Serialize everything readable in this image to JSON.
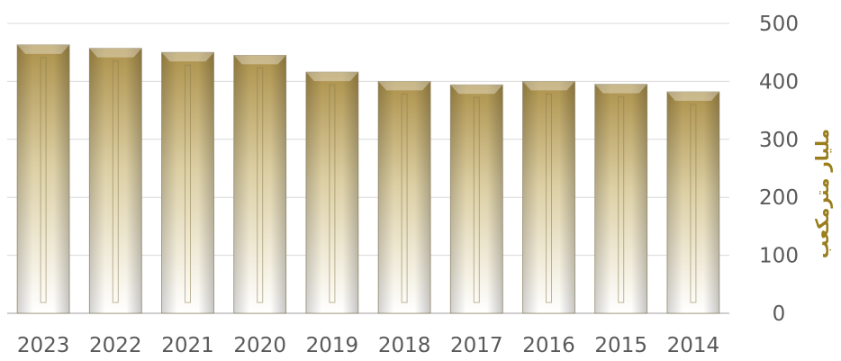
{
  "chart_data": {
    "type": "bar",
    "categories": [
      "2023",
      "2022",
      "2021",
      "2020",
      "2019",
      "2018",
      "2017",
      "2016",
      "2015",
      "2014"
    ],
    "values": [
      463,
      457,
      450,
      445,
      416,
      400,
      394,
      400,
      395,
      382
    ],
    "ylabel": "مليار مترمكعب",
    "ylim": [
      0,
      500
    ],
    "yticks": [
      "0",
      "100",
      "200",
      "300",
      "400",
      "500"
    ],
    "y_axis_position": "right",
    "grid": true,
    "legend": "none",
    "colors": {
      "bar_top": "#b39a55",
      "bar_mid": "#e6dbbf",
      "bar_bottom": "#ffffff",
      "gridline": "#d9d9d9",
      "axis_label": "#9a7d1c",
      "tick_text": "#595959"
    }
  }
}
